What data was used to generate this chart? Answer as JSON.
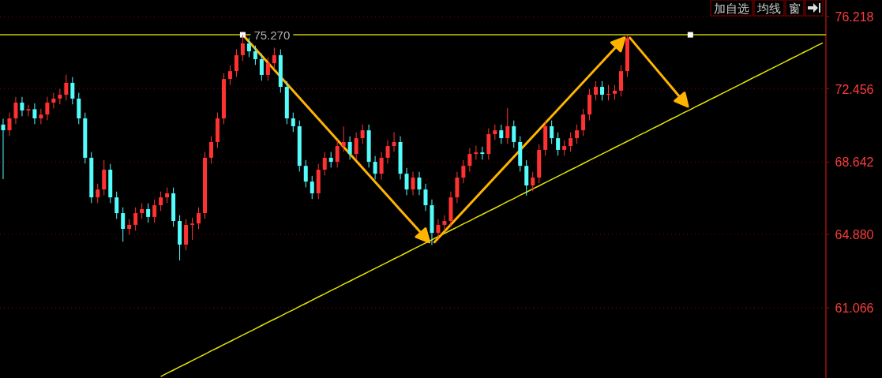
{
  "chart_data": {
    "type": "candlestick",
    "categories": [
      null,
      null,
      null,
      null,
      null,
      null,
      null,
      null,
      null,
      null,
      null,
      null,
      null,
      null,
      null,
      null,
      null,
      null,
      null,
      null,
      null,
      null,
      null,
      null,
      null,
      null,
      null,
      null,
      null,
      null,
      null,
      null,
      null,
      null,
      null,
      null,
      null,
      null,
      null,
      null,
      null,
      null,
      null,
      null,
      null,
      null,
      null,
      null,
      null,
      null,
      null,
      null,
      null,
      null,
      null,
      null,
      null,
      null,
      null,
      null,
      null,
      null,
      null,
      null,
      null,
      null,
      null,
      null,
      null,
      null,
      null,
      null,
      null,
      null,
      null,
      null,
      null,
      null,
      null,
      null,
      null,
      null,
      null,
      null,
      null,
      null,
      null,
      null,
      null,
      null,
      null,
      null,
      null,
      null,
      null,
      null,
      null,
      null,
      null,
      null,
      null,
      null,
      null,
      null,
      null,
      null,
      null,
      null,
      null,
      null,
      null,
      null,
      null,
      null,
      null,
      null,
      null,
      null,
      null,
      null,
      null,
      null,
      null,
      null,
      null,
      null,
      null,
      null,
      null,
      null,
      null
    ],
    "ohlc": [
      [
        70.6,
        70.9,
        67.76,
        70.3
      ],
      [
        70.3,
        71.22,
        70.0,
        70.92
      ],
      [
        70.92,
        72.04,
        70.62,
        71.74
      ],
      [
        71.74,
        72.04,
        71.03,
        71.33
      ],
      [
        71.33,
        71.63,
        71.03,
        71.4
      ],
      [
        71.4,
        71.7,
        70.62,
        70.92
      ],
      [
        70.92,
        71.42,
        70.62,
        71.12
      ],
      [
        71.12,
        72.04,
        70.82,
        71.74
      ],
      [
        71.74,
        72.25,
        71.44,
        71.95
      ],
      [
        71.95,
        72.45,
        71.65,
        72.15
      ],
      [
        72.15,
        73.2,
        71.85,
        72.77
      ],
      [
        72.77,
        73.07,
        71.65,
        71.95
      ],
      [
        71.95,
        72.25,
        70.62,
        70.92
      ],
      [
        70.92,
        71.22,
        68.57,
        68.87
      ],
      [
        68.87,
        69.17,
        66.51,
        66.81
      ],
      [
        66.81,
        67.52,
        66.51,
        67.22
      ],
      [
        67.22,
        68.75,
        66.92,
        68.25
      ],
      [
        68.25,
        68.55,
        66.51,
        66.81
      ],
      [
        66.81,
        67.11,
        65.69,
        65.99
      ],
      [
        65.99,
        66.29,
        64.5,
        65.17
      ],
      [
        65.17,
        65.68,
        64.87,
        65.38
      ],
      [
        65.38,
        66.29,
        65.08,
        65.99
      ],
      [
        65.99,
        66.5,
        65.69,
        66.2
      ],
      [
        66.2,
        66.5,
        65.49,
        65.79
      ],
      [
        65.79,
        66.7,
        65.49,
        66.4
      ],
      [
        66.4,
        67.11,
        66.1,
        66.81
      ],
      [
        66.81,
        67.32,
        66.51,
        67.02
      ],
      [
        67.02,
        67.32,
        65.28,
        65.58
      ],
      [
        65.58,
        65.88,
        63.53,
        64.35
      ],
      [
        64.35,
        65.68,
        64.05,
        65.38
      ],
      [
        65.38,
        65.75,
        64.6,
        65.45
      ],
      [
        65.45,
        66.29,
        65.15,
        65.99
      ],
      [
        65.99,
        69.17,
        65.69,
        68.87
      ],
      [
        68.87,
        69.99,
        68.57,
        69.69
      ],
      [
        69.69,
        71.22,
        69.39,
        70.92
      ],
      [
        70.92,
        73.27,
        70.62,
        72.97
      ],
      [
        72.97,
        73.68,
        72.67,
        73.38
      ],
      [
        73.38,
        74.51,
        73.08,
        74.21
      ],
      [
        74.21,
        75.27,
        73.91,
        74.82
      ],
      [
        74.82,
        75.12,
        74.11,
        74.41
      ],
      [
        74.41,
        74.71,
        73.7,
        74.0
      ],
      [
        74.0,
        74.3,
        72.88,
        73.18
      ],
      [
        73.18,
        74.09,
        72.88,
        73.79
      ],
      [
        73.79,
        74.6,
        73.49,
        74.21
      ],
      [
        74.21,
        74.51,
        72.26,
        72.56
      ],
      [
        72.56,
        72.86,
        70.62,
        70.92
      ],
      [
        70.92,
        71.22,
        70.21,
        70.51
      ],
      [
        70.51,
        70.81,
        68.15,
        68.45
      ],
      [
        68.45,
        68.75,
        67.33,
        67.63
      ],
      [
        67.63,
        67.93,
        66.72,
        67.02
      ],
      [
        67.02,
        68.55,
        66.72,
        68.25
      ],
      [
        68.25,
        69.17,
        67.95,
        68.87
      ],
      [
        68.87,
        69.17,
        68.36,
        68.66
      ],
      [
        68.66,
        69.78,
        68.36,
        69.48
      ],
      [
        69.48,
        70.5,
        69.18,
        69.69
      ],
      [
        69.69,
        69.99,
        68.77,
        69.07
      ],
      [
        69.07,
        70.19,
        68.77,
        69.89
      ],
      [
        69.89,
        70.6,
        69.59,
        70.3
      ],
      [
        70.3,
        70.6,
        68.36,
        68.66
      ],
      [
        68.66,
        68.96,
        67.74,
        68.04
      ],
      [
        68.04,
        69.17,
        67.74,
        68.87
      ],
      [
        68.87,
        69.78,
        68.57,
        69.48
      ],
      [
        69.48,
        70.2,
        69.18,
        69.69
      ],
      [
        69.69,
        69.99,
        67.74,
        68.04
      ],
      [
        68.04,
        68.34,
        66.92,
        67.22
      ],
      [
        67.22,
        68.14,
        66.92,
        67.84
      ],
      [
        67.84,
        68.14,
        66.92,
        67.22
      ],
      [
        67.22,
        67.52,
        66.1,
        66.4
      ],
      [
        66.4,
        66.7,
        64.33,
        64.96
      ],
      [
        64.96,
        65.68,
        64.66,
        65.38
      ],
      [
        65.38,
        65.88,
        65.08,
        65.58
      ],
      [
        65.58,
        67.11,
        65.28,
        66.81
      ],
      [
        66.81,
        68.14,
        66.51,
        67.84
      ],
      [
        67.84,
        68.75,
        67.54,
        68.45
      ],
      [
        68.45,
        69.37,
        68.15,
        69.07
      ],
      [
        69.07,
        69.5,
        68.77,
        69.15
      ],
      [
        69.15,
        69.45,
        68.77,
        69.07
      ],
      [
        69.07,
        70.4,
        68.77,
        70.1
      ],
      [
        70.1,
        70.6,
        69.8,
        70.3
      ],
      [
        70.3,
        70.6,
        69.59,
        69.89
      ],
      [
        69.89,
        71.45,
        69.59,
        70.51
      ],
      [
        70.51,
        70.81,
        69.39,
        69.69
      ],
      [
        69.69,
        69.99,
        68.15,
        68.45
      ],
      [
        68.45,
        68.75,
        66.9,
        67.43
      ],
      [
        67.43,
        68.14,
        67.13,
        67.84
      ],
      [
        67.84,
        69.58,
        67.54,
        69.28
      ],
      [
        69.28,
        70.81,
        68.98,
        70.51
      ],
      [
        70.51,
        70.81,
        69.59,
        69.89
      ],
      [
        69.89,
        70.19,
        68.98,
        69.28
      ],
      [
        69.28,
        69.78,
        68.98,
        69.48
      ],
      [
        69.48,
        70.19,
        69.18,
        69.89
      ],
      [
        69.89,
        70.6,
        69.59,
        70.3
      ],
      [
        70.3,
        71.42,
        70.0,
        71.12
      ],
      [
        71.12,
        72.45,
        70.82,
        72.15
      ],
      [
        72.15,
        72.86,
        71.85,
        72.56
      ],
      [
        72.56,
        72.86,
        71.85,
        72.15
      ],
      [
        72.15,
        72.66,
        71.85,
        72.2
      ],
      [
        72.2,
        72.66,
        71.9,
        72.36
      ],
      [
        72.36,
        73.68,
        72.06,
        73.38
      ],
      [
        73.38,
        75.27,
        73.08,
        75.1
      ],
      null,
      null,
      null,
      null,
      null,
      null,
      null,
      null,
      null,
      null,
      null,
      null,
      null,
      null,
      null,
      null,
      null,
      null,
      null,
      null,
      null,
      null,
      null,
      null,
      null,
      null,
      null,
      null,
      null,
      null,
      null
    ],
    "series": [
      {
        "type": "line",
        "color": "#e6e600",
        "values": [
          null,
          null,
          null,
          null,
          null,
          null,
          null,
          null,
          null,
          null,
          null,
          null,
          null,
          null,
          null,
          null,
          null,
          null,
          null,
          null,
          null,
          null,
          null,
          null,
          null,
          57.49,
          57.66,
          57.82,
          57.99,
          58.15,
          58.32,
          58.48,
          58.65,
          58.82,
          58.98,
          59.15,
          59.31,
          59.48,
          59.64,
          59.81,
          59.97,
          60.14,
          60.31,
          60.47,
          60.63,
          60.8,
          60.96,
          61.13,
          61.29,
          61.46,
          61.63,
          61.79,
          61.96,
          62.12,
          62.29,
          62.45,
          62.62,
          62.78,
          62.95,
          63.11,
          63.28,
          63.44,
          63.61,
          63.77,
          63.94,
          64.11,
          64.27,
          64.44,
          64.6,
          64.77,
          64.93,
          65.1,
          65.26,
          65.43,
          65.59,
          65.76,
          65.92,
          66.09,
          66.25,
          66.42,
          66.59,
          66.75,
          66.92,
          67.08,
          67.25,
          67.41,
          67.58,
          67.74,
          67.91,
          68.07,
          68.24,
          68.4,
          68.57,
          68.74,
          68.9,
          69.07,
          69.23,
          69.4,
          69.56,
          69.73,
          69.89,
          70.06,
          70.22,
          70.39,
          70.55,
          70.72,
          70.89,
          71.05,
          71.22,
          71.38,
          71.55,
          71.71,
          71.88,
          72.04,
          72.21,
          72.37,
          72.54,
          72.7,
          72.87,
          73.04,
          73.2,
          73.37,
          73.53,
          73.7,
          73.86,
          74.03,
          74.19,
          74.36,
          74.52,
          74.69,
          74.85
        ]
      }
    ],
    "ref_lines": [
      {
        "axis": "y",
        "value": 75.27,
        "label": "75.270",
        "color": "#c8c800"
      }
    ],
    "annotations": [
      "加自选",
      "均线",
      "窗"
    ],
    "ylim": [
      57.41,
      77.08
    ],
    "yticks": [
      {
        "value": 76.218,
        "label": "76.218"
      },
      {
        "value": 72.456,
        "label": "72.456"
      },
      {
        "value": 68.642,
        "label": "68.642"
      },
      {
        "value": 64.88,
        "label": "64.880"
      },
      {
        "value": 61.066,
        "label": "61.066"
      }
    ],
    "grid": "y",
    "tick_labels": "y"
  }
}
